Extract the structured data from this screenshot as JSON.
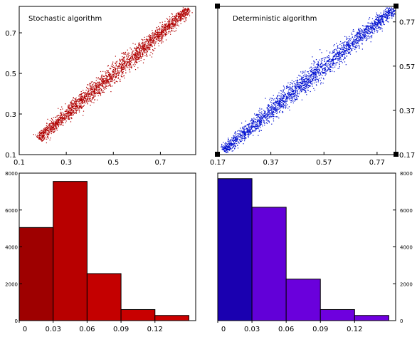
{
  "chart_data": [
    {
      "type": "scatter",
      "title": "Stochastic algorithm",
      "xlim": [
        0.1,
        0.85
      ],
      "ylim": [
        0.1,
        0.83
      ],
      "xticks": [
        "0.1",
        "0.3",
        "0.5",
        "0.7"
      ],
      "yticks": [
        "0.1",
        "0.3",
        "0.5",
        "0.7"
      ],
      "xtick_values": [
        0.1,
        0.3,
        0.5,
        0.7
      ],
      "ytick_values": [
        0.1,
        0.3,
        0.5,
        0.7
      ],
      "trend": {
        "x_start": 0.18,
        "x_end": 0.82,
        "slope": 1.0,
        "intercept": 0.0
      },
      "color": "#b00000",
      "grid": false
    },
    {
      "type": "scatter",
      "title": "Deterministic algorithm",
      "xlim": [
        0.17,
        0.84
      ],
      "ylim": [
        0.17,
        0.84
      ],
      "xticks": [
        "0.17",
        "0.37",
        "0.57",
        "0.77"
      ],
      "yticks": [
        "0.17",
        "0.37",
        "0.57",
        "0.77"
      ],
      "xtick_values": [
        0.17,
        0.37,
        0.57,
        0.77
      ],
      "ytick_values": [
        0.17,
        0.37,
        0.57,
        0.77
      ],
      "trend": {
        "x_start": 0.19,
        "x_end": 0.83,
        "slope": 1.0,
        "intercept": 0.0
      },
      "color": "#0010d0",
      "grid": false
    },
    {
      "type": "bar",
      "title": "",
      "bin_edges": [
        0,
        0.03,
        0.06,
        0.09,
        0.12,
        0.15
      ],
      "values": [
        5050,
        7550,
        2550,
        600,
        280
      ],
      "xticks": [
        "0",
        "0.03",
        "0.06",
        "0.09",
        "0.12"
      ],
      "yticks": [
        "0",
        "2000",
        "4000",
        "6000",
        "8000"
      ],
      "ylim": [
        0,
        8000
      ],
      "colors": [
        "#9e0000",
        "#b80000",
        "#c40000",
        "#c80000",
        "#cc0000"
      ],
      "grid": false
    },
    {
      "type": "bar",
      "title": "",
      "bin_edges": [
        0,
        0.03,
        0.06,
        0.09,
        0.12,
        0.15
      ],
      "values": [
        7700,
        6150,
        2250,
        600,
        280
      ],
      "xticks": [
        "0",
        "0.03",
        "0.06",
        "0.09",
        "0.12"
      ],
      "yticks": [
        "0",
        "2000",
        "4000",
        "6000",
        "8000"
      ],
      "ylim": [
        0,
        8000
      ],
      "colors": [
        "#1a00b0",
        "#6200d8",
        "#6a00dc",
        "#6e00de",
        "#7000e0"
      ],
      "grid": false
    }
  ]
}
